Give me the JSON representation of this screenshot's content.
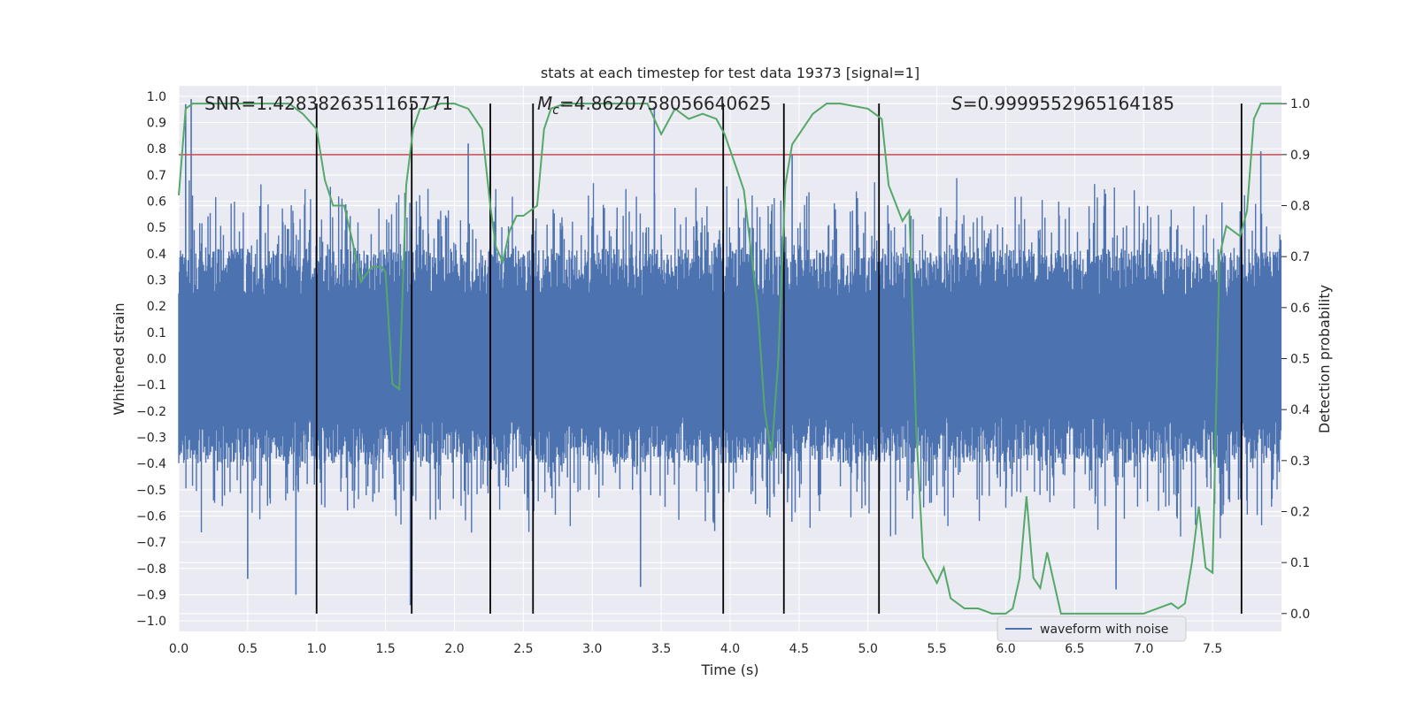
{
  "chart_data": {
    "type": "line",
    "title": "stats at each timestep for test data 19373 [signal=1]",
    "xlabel": "Time (s)",
    "ylabel": "Whitened strain",
    "y2label": "Detection probability",
    "xlim": [
      0.0,
      8.0
    ],
    "ylim": [
      -1.04,
      1.04
    ],
    "y2lim": [
      -0.035,
      1.035
    ],
    "x_ticks": [
      "0.0",
      "0.5",
      "1.0",
      "1.5",
      "2.0",
      "2.5",
      "3.0",
      "3.5",
      "4.0",
      "4.5",
      "5.0",
      "5.5",
      "6.0",
      "6.5",
      "7.0",
      "7.5"
    ],
    "y_ticks": [
      "1.0",
      "0.9",
      "0.8",
      "0.7",
      "0.6",
      "0.5",
      "0.4",
      "0.3",
      "0.2",
      "0.1",
      "0.0",
      "−0.1",
      "−0.2",
      "−0.3",
      "−0.4",
      "−0.5",
      "−0.6",
      "−0.7",
      "−0.8",
      "−0.9",
      "−1.0"
    ],
    "y2_ticks": [
      "1.0",
      "0.9",
      "0.8",
      "0.7",
      "0.6",
      "0.5",
      "0.4",
      "0.3",
      "0.2",
      "0.1",
      "0.0"
    ],
    "annotations": {
      "snr": "SNR=1.4283826351165771",
      "mc_symbol": "M",
      "mc_sub": "c",
      "mc_value": "=4.8620758056640625",
      "s_symbol": "S",
      "s_value": "=0.9999552965164185"
    },
    "threshold": {
      "value": 0.9,
      "axis": "right",
      "color": "#c44e52"
    },
    "vertical_lines": [
      1.0,
      1.69,
      2.26,
      2.57,
      3.95,
      4.39,
      5.08,
      7.71
    ],
    "legend": {
      "entries": [
        "waveform with noise"
      ],
      "placement": "lower-right"
    },
    "grid": true,
    "series": [
      {
        "name": "waveform with noise",
        "axis": "left",
        "color": "#4c72b0",
        "kind": "noise",
        "envelope": {
          "typical_high": 0.42,
          "typical_low": -0.4
        },
        "x_range": [
          0.0,
          8.0
        ],
        "peaks_high": [
          [
            0.05,
            0.97
          ],
          [
            0.09,
            0.99
          ],
          [
            2.1,
            0.82
          ],
          [
            3.45,
            0.96
          ],
          [
            4.45,
            0.78
          ],
          [
            7.85,
            0.79
          ]
        ],
        "peaks_low": [
          [
            0.85,
            -0.9
          ],
          [
            1.68,
            -0.94
          ],
          [
            3.35,
            -0.87
          ],
          [
            6.8,
            -0.88
          ],
          [
            0.5,
            -0.84
          ]
        ]
      },
      {
        "axis": "right",
        "color": "#55a868",
        "x": [
          0.0,
          0.05,
          0.1,
          0.2,
          0.3,
          0.5,
          0.8,
          0.9,
          1.0,
          1.06,
          1.12,
          1.2,
          1.26,
          1.32,
          1.4,
          1.47,
          1.5,
          1.55,
          1.6,
          1.65,
          1.7,
          1.75,
          1.8,
          1.9,
          2.0,
          2.1,
          2.15,
          2.2,
          2.26,
          2.3,
          2.35,
          2.4,
          2.45,
          2.5,
          2.6,
          2.65,
          2.7,
          2.8,
          2.9,
          3.0,
          3.1,
          3.3,
          3.4,
          3.5,
          3.6,
          3.7,
          3.8,
          3.9,
          3.96,
          4.05,
          4.1,
          4.2,
          4.25,
          4.3,
          4.35,
          4.4,
          4.45,
          4.5,
          4.6,
          4.7,
          4.8,
          5.0,
          5.1,
          5.15,
          5.25,
          5.3,
          5.35,
          5.4,
          5.5,
          5.55,
          5.6,
          5.7,
          5.8,
          5.9,
          6.0,
          6.05,
          6.1,
          6.15,
          6.2,
          6.25,
          6.3,
          6.35,
          6.4,
          6.5,
          6.6,
          6.7,
          6.8,
          6.9,
          7.0,
          7.1,
          7.2,
          7.25,
          7.3,
          7.35,
          7.4,
          7.45,
          7.5,
          7.55,
          7.6,
          7.65,
          7.7,
          7.75,
          7.8,
          7.85,
          7.9,
          7.95,
          8.0
        ],
        "values": [
          0.82,
          0.99,
          1.0,
          1.0,
          1.0,
          1.0,
          1.0,
          0.98,
          0.95,
          0.85,
          0.8,
          0.8,
          0.73,
          0.65,
          0.68,
          0.68,
          0.67,
          0.45,
          0.44,
          0.84,
          0.95,
          0.99,
          0.99,
          1.0,
          1.0,
          0.99,
          0.97,
          0.95,
          0.8,
          0.72,
          0.69,
          0.75,
          0.78,
          0.78,
          0.8,
          0.95,
          0.99,
          1.0,
          1.0,
          1.0,
          1.0,
          1.0,
          1.0,
          0.94,
          0.99,
          0.97,
          0.98,
          0.97,
          0.94,
          0.87,
          0.83,
          0.6,
          0.4,
          0.31,
          0.5,
          0.84,
          0.92,
          0.94,
          0.98,
          1.0,
          1.0,
          0.99,
          0.97,
          0.84,
          0.77,
          0.79,
          0.36,
          0.11,
          0.06,
          0.09,
          0.03,
          0.01,
          0.01,
          0.0,
          0.0,
          0.01,
          0.07,
          0.23,
          0.07,
          0.05,
          0.12,
          0.06,
          0.0,
          0.0,
          0.0,
          0.0,
          0.0,
          0.0,
          0.0,
          0.01,
          0.02,
          0.01,
          0.02,
          0.1,
          0.21,
          0.09,
          0.08,
          0.7,
          0.76,
          0.75,
          0.74,
          0.79,
          0.97,
          1.0,
          1.0,
          1.0,
          1.0
        ]
      }
    ]
  }
}
